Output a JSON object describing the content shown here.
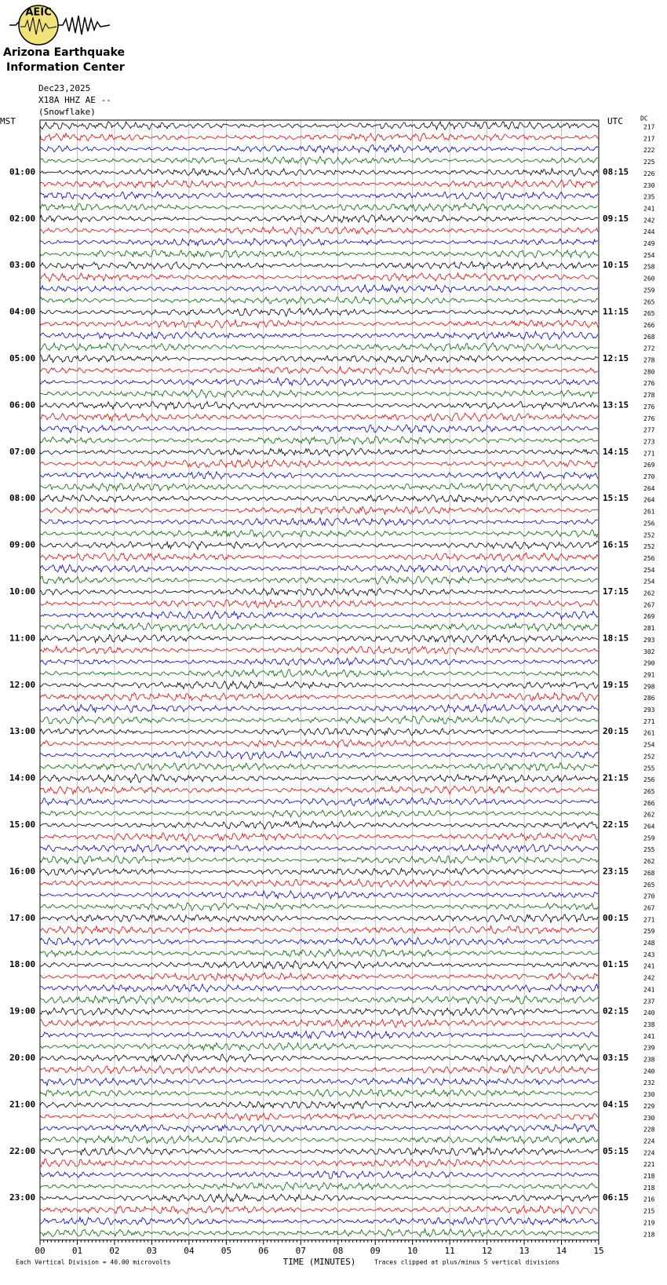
{
  "header": {
    "logo_text": "AEIC",
    "org_line1": "Arizona Earthquake",
    "org_line2": "Information Center",
    "date": "Dec23,2025",
    "station": "X18A HHZ AE --",
    "site": "(Snowflake)"
  },
  "left_axis": {
    "title": "MST",
    "labels": [
      "01:00",
      "02:00",
      "03:00",
      "04:00",
      "05:00",
      "06:00",
      "07:00",
      "08:00",
      "09:00",
      "10:00",
      "11:00",
      "12:00",
      "13:00",
      "14:00",
      "15:00",
      "16:00",
      "17:00",
      "18:00",
      "19:00",
      "20:00",
      "21:00",
      "22:00",
      "23:00"
    ]
  },
  "right_axis": {
    "title": "UTC",
    "labels": [
      "08:15",
      "09:15",
      "10:15",
      "11:15",
      "12:15",
      "13:15",
      "14:15",
      "15:15",
      "16:15",
      "17:15",
      "18:15",
      "19:15",
      "20:15",
      "21:15",
      "22:15",
      "23:15",
      "00:15",
      "01:15",
      "02:15",
      "03:15",
      "04:15",
      "05:15",
      "06:15"
    ]
  },
  "dc": {
    "title": "DC",
    "values": [
      217,
      217,
      222,
      225,
      226,
      230,
      235,
      241,
      242,
      244,
      249,
      254,
      258,
      260,
      259,
      265,
      265,
      266,
      268,
      272,
      278,
      280,
      276,
      278,
      276,
      276,
      277,
      273,
      271,
      269,
      270,
      264,
      264,
      261,
      256,
      252,
      252,
      256,
      254,
      254,
      262,
      267,
      269,
      281,
      293,
      302,
      290,
      291,
      298,
      286,
      293,
      271,
      261,
      254,
      252,
      255,
      256,
      265,
      266,
      262,
      264,
      259,
      255,
      262,
      268,
      265,
      270,
      267,
      271,
      259,
      248,
      243,
      241,
      242,
      241,
      237,
      240,
      238,
      241,
      239,
      238,
      240,
      232,
      230,
      229,
      230,
      228,
      224,
      224,
      221,
      218,
      218,
      216,
      215,
      219,
      218
    ]
  },
  "x_axis": {
    "ticks": [
      "00",
      "01",
      "02",
      "03",
      "04",
      "05",
      "06",
      "07",
      "08",
      "09",
      "10",
      "11",
      "12",
      "13",
      "14",
      "15"
    ],
    "label": "TIME (MINUTES)"
  },
  "footer": {
    "scale_note": "Each Vertical Division =   40.00 microvolts",
    "clip_note": "Traces clipped at plus/minus 5 vertical divisions"
  }
}
